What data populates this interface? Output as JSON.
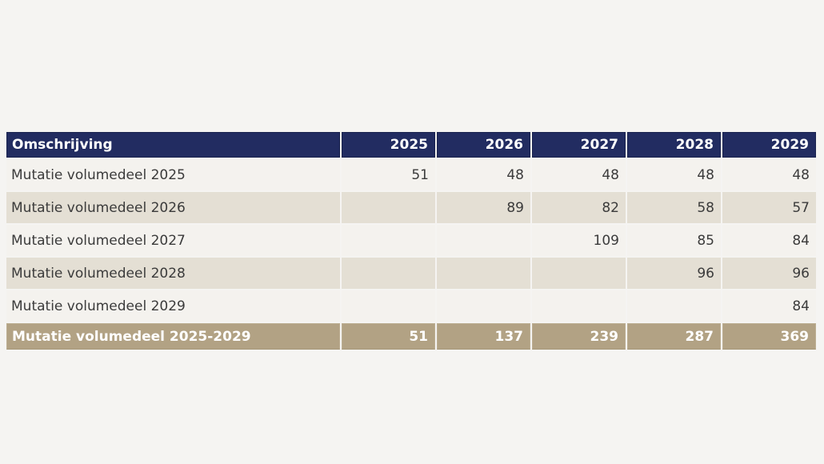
{
  "page": {
    "background_color": "#f5f4f2"
  },
  "table": {
    "columns": [
      "Omschrijving",
      "2025",
      "2026",
      "2027",
      "2028",
      "2029"
    ],
    "rows": [
      {
        "label": "Mutatie volumedeel 2025",
        "values": [
          "51",
          "48",
          "48",
          "48",
          "48"
        ]
      },
      {
        "label": "Mutatie volumedeel 2026",
        "values": [
          "",
          "89",
          "82",
          "58",
          "57"
        ]
      },
      {
        "label": "Mutatie volumedeel 2027",
        "values": [
          "",
          "",
          "109",
          "85",
          "84"
        ]
      },
      {
        "label": "Mutatie volumedeel 2028",
        "values": [
          "",
          "",
          "",
          "96",
          "96"
        ]
      },
      {
        "label": "Mutatie volumedeel 2029",
        "values": [
          "",
          "",
          "",
          "",
          "84"
        ]
      }
    ],
    "footer": {
      "label": "Mutatie volumedeel 2025-2029",
      "values": [
        "51",
        "137",
        "239",
        "287",
        "369"
      ]
    },
    "colors": {
      "header_bg": "#222c61",
      "header_text": "#ffffff",
      "row_light_bg": "#f4f2ee",
      "row_tan_bg": "#e4dfd4",
      "footer_bg": "#b2a284",
      "footer_text": "#ffffff",
      "body_text": "#3b3b3b"
    }
  },
  "chart_data": {
    "type": "table",
    "title": "",
    "columns": [
      "Omschrijving",
      "2025",
      "2026",
      "2027",
      "2028",
      "2029"
    ],
    "rows": [
      [
        "Mutatie volumedeel 2025",
        51,
        48,
        48,
        48,
        48
      ],
      [
        "Mutatie volumedeel 2026",
        null,
        89,
        82,
        58,
        57
      ],
      [
        "Mutatie volumedeel 2027",
        null,
        null,
        109,
        85,
        84
      ],
      [
        "Mutatie volumedeel 2028",
        null,
        null,
        null,
        96,
        96
      ],
      [
        "Mutatie volumedeel 2029",
        null,
        null,
        null,
        null,
        84
      ],
      [
        "Mutatie volumedeel 2025-2029",
        51,
        137,
        239,
        287,
        369
      ]
    ]
  }
}
